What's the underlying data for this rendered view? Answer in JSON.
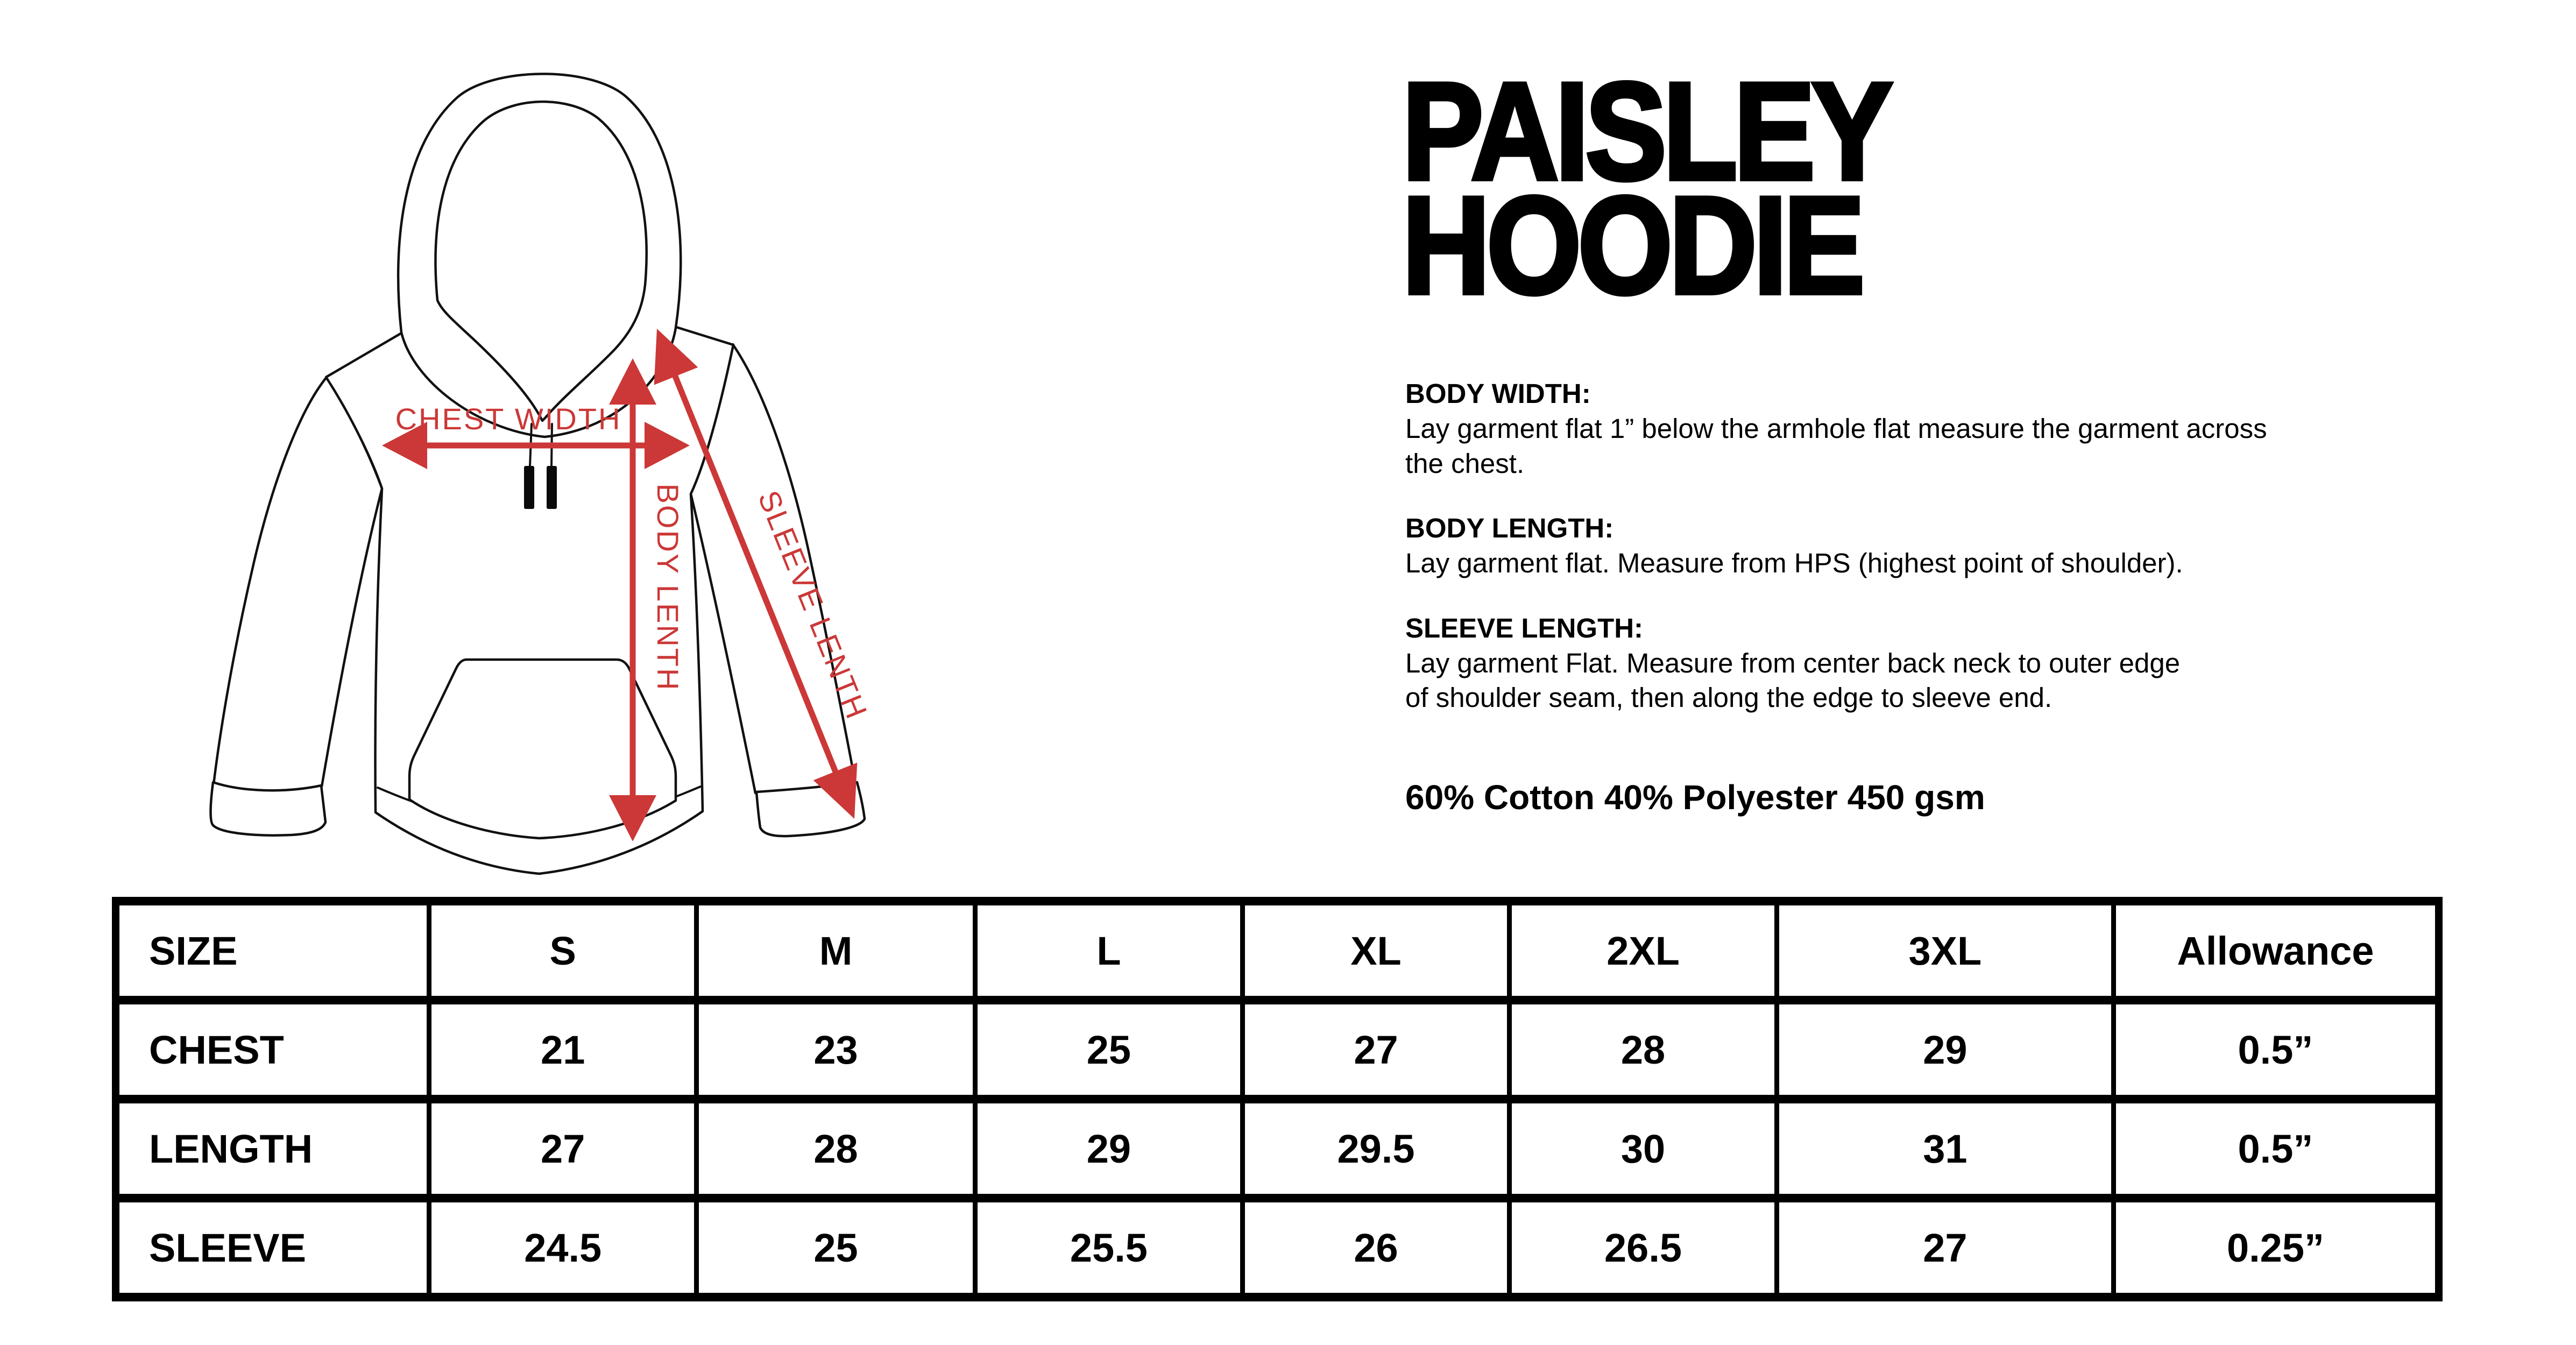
{
  "diagram": {
    "arrow_color": "#CB3837",
    "labels": {
      "chest_width": "CHEST WIDTH",
      "body_length": "BODY LENTH",
      "sleeve_length": "SLEEVE LENTH"
    }
  },
  "title": {
    "line1": "PAISLEY",
    "line2": "HOODIE"
  },
  "sections": [
    {
      "heading": "BODY WIDTH:",
      "lines": [
        "Lay garment flat 1” below the armhole flat measure the garment across",
        "the chest."
      ]
    },
    {
      "heading": "BODY LENGTH:",
      "lines": [
        "Lay garment flat. Measure from HPS (highest point of shoulder)."
      ]
    },
    {
      "heading": "SLEEVE LENGTH:",
      "lines": [
        "Lay garment Flat. Measure from center back neck to outer edge",
        "of shoulder seam, then along the edge to sleeve end."
      ]
    }
  ],
  "material": "60% Cotton 40% Polyester 450 gsm",
  "size_table": {
    "columns": [
      "SIZE",
      "S",
      "M",
      "L",
      "XL",
      "2XL",
      "3XL",
      "Allowance"
    ],
    "rows": [
      {
        "label": "CHEST",
        "values": [
          "21",
          "23",
          "25",
          "27",
          "28",
          "29",
          "0.5”"
        ]
      },
      {
        "label": "LENGTH",
        "values": [
          "27",
          "28",
          "29",
          "29.5",
          "30",
          "31",
          "0.5”"
        ]
      },
      {
        "label": "SLEEVE",
        "values": [
          "24.5",
          "25",
          "25.5",
          "26",
          "26.5",
          "27",
          "0.25”"
        ]
      }
    ]
  }
}
